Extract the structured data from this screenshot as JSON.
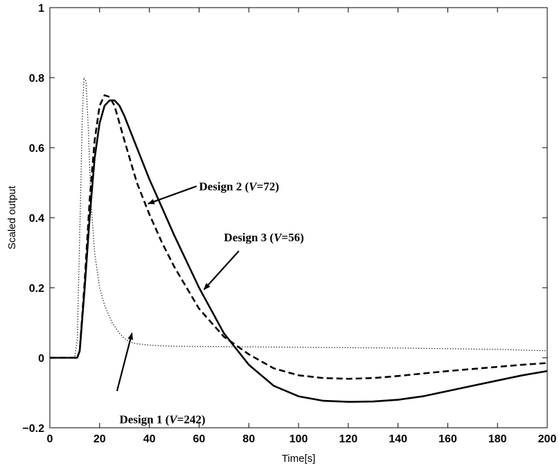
{
  "chart_data": {
    "type": "line",
    "xlabel": "Time[s]",
    "ylabel": "Scaled output",
    "xlim": [
      0,
      200
    ],
    "ylim": [
      -0.2,
      1
    ],
    "xticks": [
      0,
      20,
      40,
      60,
      80,
      100,
      120,
      140,
      160,
      180,
      200
    ],
    "yticks": [
      -0.2,
      0,
      0.2,
      0.4,
      0.6,
      0.8,
      1
    ],
    "ytick_labels": [
      "−0.2",
      "0",
      "0.2",
      "0.4",
      "0.6",
      "0.8",
      "1"
    ],
    "grid": false,
    "series": [
      {
        "name": "Design 1 (V=242)",
        "style": "dotted",
        "color": "#000000",
        "x": [
          0,
          10,
          11,
          12,
          13,
          13.7,
          14.5,
          15.5,
          16.5,
          18,
          20,
          22,
          25,
          28,
          30,
          32,
          35,
          40,
          45,
          50,
          60,
          80,
          100,
          120,
          140,
          160,
          180,
          200
        ],
        "y": [
          0,
          0,
          0.05,
          0.35,
          0.68,
          0.8,
          0.79,
          0.65,
          0.45,
          0.3,
          0.2,
          0.15,
          0.1,
          0.07,
          0.055,
          0.045,
          0.04,
          0.036,
          0.034,
          0.033,
          0.032,
          0.031,
          0.03,
          0.029,
          0.028,
          0.026,
          0.024,
          0.02
        ]
      },
      {
        "name": "Design 2 (V=72)",
        "style": "dashed",
        "color": "#000000",
        "x": [
          0,
          11,
          12,
          14,
          16,
          18,
          20,
          22,
          24,
          26,
          30,
          35,
          40,
          45,
          50,
          60,
          70,
          80,
          90,
          100,
          110,
          120,
          130,
          140,
          150,
          160,
          170,
          180,
          190,
          200
        ],
        "y": [
          0,
          0,
          0.02,
          0.22,
          0.45,
          0.62,
          0.72,
          0.75,
          0.745,
          0.72,
          0.62,
          0.5,
          0.41,
          0.33,
          0.26,
          0.14,
          0.06,
          0.01,
          -0.03,
          -0.05,
          -0.058,
          -0.06,
          -0.058,
          -0.052,
          -0.045,
          -0.038,
          -0.032,
          -0.026,
          -0.02,
          -0.015
        ]
      },
      {
        "name": "Design 3 (V=56)",
        "style": "solid",
        "color": "#000000",
        "x": [
          0,
          11,
          12,
          14,
          16,
          18,
          20,
          22,
          24,
          26,
          28,
          30,
          35,
          40,
          45,
          50,
          60,
          70,
          80,
          90,
          100,
          110,
          120,
          130,
          140,
          150,
          160,
          170,
          180,
          190,
          200
        ],
        "y": [
          0,
          0,
          0.02,
          0.2,
          0.4,
          0.57,
          0.67,
          0.72,
          0.735,
          0.735,
          0.72,
          0.69,
          0.6,
          0.51,
          0.43,
          0.35,
          0.2,
          0.07,
          -0.02,
          -0.08,
          -0.11,
          -0.123,
          -0.126,
          -0.125,
          -0.12,
          -0.11,
          -0.095,
          -0.08,
          -0.065,
          -0.05,
          -0.038
        ]
      }
    ],
    "annotations": [
      {
        "id": "design1",
        "prefix": "Design 1 (",
        "var": "V",
        "suffix": "=242)",
        "text_x": 28,
        "text_y": -0.175,
        "arrow_from": [
          27,
          -0.095
        ],
        "arrow_to": [
          33,
          0.07
        ]
      },
      {
        "id": "design2",
        "prefix": "Design 2 (",
        "var": "V",
        "suffix": "=72)",
        "text_x": 60,
        "text_y": 0.49,
        "arrow_from": [
          59,
          0.49
        ],
        "arrow_to": [
          39.5,
          0.44
        ]
      },
      {
        "id": "design3",
        "prefix": "Design 3 (",
        "var": "V",
        "suffix": "=56)",
        "text_x": 70,
        "text_y": 0.345,
        "arrow_from": [
          76,
          0.305
        ],
        "arrow_to": [
          62,
          0.195
        ]
      }
    ]
  }
}
